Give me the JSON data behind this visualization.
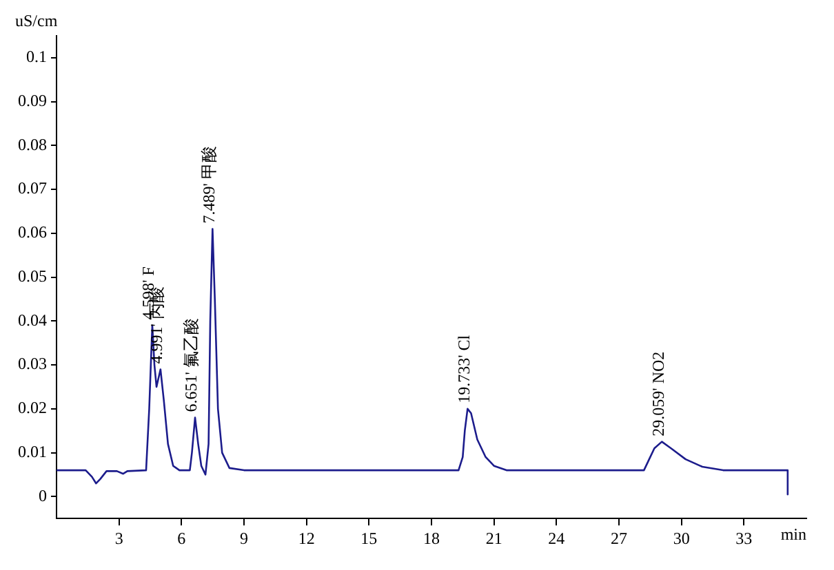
{
  "chart_data": {
    "type": "line",
    "xlabel": "min",
    "ylabel": "uS/cm",
    "xlim": [
      0,
      36
    ],
    "ylim": [
      -0.005,
      0.105
    ],
    "xticks": [
      3,
      6,
      9,
      12,
      15,
      18,
      21,
      24,
      27,
      30,
      33
    ],
    "yticks": [
      0,
      0.01,
      0.02,
      0.03,
      0.04,
      0.05,
      0.06,
      0.07,
      0.08,
      0.09,
      0.1
    ],
    "grid": false,
    "legend": false,
    "marker": "none",
    "line_style": "solid",
    "series": [
      {
        "color": "#1c1c8c",
        "x": [
          0,
          1.4,
          1.7,
          1.9,
          2.1,
          2.4,
          2.9,
          3.2,
          3.4,
          4.3,
          4.45,
          4.55,
          4.598,
          4.7,
          4.8,
          4.991,
          5.15,
          5.35,
          5.6,
          5.9,
          6.4,
          6.5,
          6.651,
          6.8,
          6.95,
          7.15,
          7.3,
          7.38,
          7.489,
          7.6,
          7.75,
          7.95,
          8.3,
          9,
          19.3,
          19.5,
          19.6,
          19.733,
          19.9,
          20.2,
          20.6,
          21,
          21.6,
          28.2,
          28.4,
          28.7,
          29.059,
          29.5,
          30.2,
          31,
          32,
          35.1,
          35.1
        ],
        "values": [
          0.006,
          0.006,
          0.0045,
          0.003,
          0.004,
          0.0058,
          0.0058,
          0.0052,
          0.0058,
          0.006,
          0.02,
          0.033,
          0.039,
          0.03,
          0.025,
          0.029,
          0.022,
          0.012,
          0.007,
          0.006,
          0.006,
          0.01,
          0.018,
          0.012,
          0.007,
          0.005,
          0.012,
          0.04,
          0.061,
          0.045,
          0.02,
          0.01,
          0.0065,
          0.006,
          0.006,
          0.009,
          0.015,
          0.02,
          0.019,
          0.013,
          0.009,
          0.007,
          0.006,
          0.006,
          0.008,
          0.011,
          0.0125,
          0.011,
          0.0085,
          0.0068,
          0.006,
          0.006,
          0.0005
        ]
      }
    ],
    "annotations": [
      {
        "text": "4.598' F",
        "x": 4.598,
        "y": 0.039
      },
      {
        "text": "4.991' 丙酸",
        "x": 4.991,
        "y": 0.029
      },
      {
        "text": "6.651' 氟乙酸",
        "x": 6.651,
        "y": 0.018
      },
      {
        "text": "7.489' 甲酸",
        "x": 7.489,
        "y": 0.061
      },
      {
        "text": "19.733' Cl",
        "x": 19.733,
        "y": 0.02
      },
      {
        "text": "29.059' NO2",
        "x": 29.059,
        "y": 0.0125
      }
    ]
  }
}
